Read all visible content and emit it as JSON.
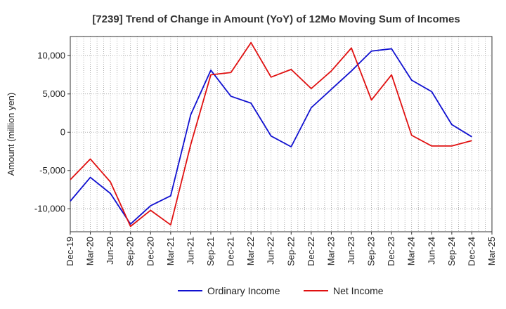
{
  "chart_data": {
    "type": "line",
    "title": "[7239]  Trend of Change in Amount (YoY) of 12Mo Moving Sum of Incomes",
    "ylabel": "Amount (million yen)",
    "xlabel": "",
    "ylim": [
      -13000,
      12500
    ],
    "yticks": [
      10000,
      5000,
      0,
      -5000,
      -10000
    ],
    "ytick_labels": [
      "10,000",
      "5,000",
      "0",
      "-5,000",
      "-10,000"
    ],
    "x": [
      "Dec-19",
      "Mar-20",
      "Jun-20",
      "Sep-20",
      "Dec-20",
      "Mar-21",
      "Jun-21",
      "Sep-21",
      "Dec-21",
      "Mar-22",
      "Jun-22",
      "Sep-22",
      "Dec-22",
      "Mar-23",
      "Jun-23",
      "Sep-23",
      "Dec-23",
      "Mar-24",
      "Jun-24",
      "Sep-24",
      "Dec-24",
      "Mar-25"
    ],
    "grid": true,
    "legend_position": "bottom-center",
    "series": [
      {
        "name": "Ordinary Income",
        "color": "#1010d0",
        "values": [
          -9000,
          -5900,
          -8000,
          -12000,
          -9600,
          -8300,
          2300,
          8100,
          4700,
          3800,
          -500,
          -1900,
          3200,
          5600,
          8000,
          10600,
          10900,
          6800,
          5300,
          1000,
          -600,
          null
        ]
      },
      {
        "name": "Net Income",
        "color": "#e01010",
        "values": [
          -6200,
          -3500,
          -6500,
          -12300,
          -10200,
          -12100,
          -1600,
          7500,
          7800,
          11700,
          7200,
          8200,
          5700,
          8000,
          11000,
          4200,
          7500,
          -400,
          -1800,
          -1800,
          -1100,
          null
        ]
      }
    ]
  }
}
